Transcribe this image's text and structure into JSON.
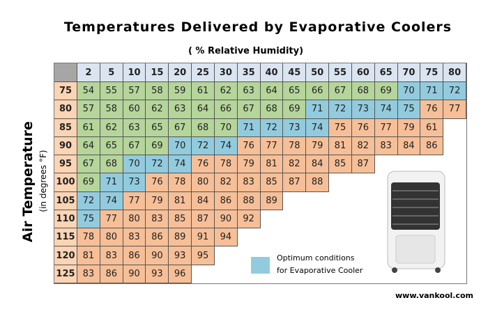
{
  "header": {
    "title": "Temperatures Delivered by Evaporative Coolers",
    "subtitle": "( % Relative Humidity)"
  },
  "axis": {
    "label": "Air Temperature",
    "unit": "(in degrees °F)"
  },
  "table": {
    "humidity": [
      2,
      5,
      10,
      15,
      20,
      25,
      30,
      35,
      40,
      45,
      50,
      55,
      60,
      65,
      70,
      75,
      80
    ],
    "zone_colors": {
      "G": "#b5d59b",
      "B": "#92cbde",
      "O": "#f6bf97"
    },
    "rows": [
      {
        "temp": 75,
        "values": [
          54,
          55,
          57,
          58,
          59,
          61,
          62,
          63,
          64,
          65,
          66,
          67,
          68,
          69,
          70,
          71,
          72
        ],
        "zones": "GGGGGGGGGGGGGGBBB"
      },
      {
        "temp": 80,
        "values": [
          57,
          58,
          60,
          62,
          63,
          64,
          66,
          67,
          68,
          69,
          71,
          72,
          73,
          74,
          75,
          76,
          77
        ],
        "zones": "GGGGGGGGGGBBBBBOO"
      },
      {
        "temp": 85,
        "values": [
          61,
          62,
          63,
          65,
          67,
          68,
          70,
          71,
          72,
          73,
          74,
          75,
          76,
          77,
          79,
          61
        ],
        "zones": "GGGGGGGBBBBOOOOO"
      },
      {
        "temp": 90,
        "values": [
          64,
          65,
          67,
          69,
          70,
          72,
          74,
          76,
          77,
          78,
          79,
          81,
          82,
          83,
          84,
          86
        ],
        "zones": "GGGGBBBOOOOOOOOO"
      },
      {
        "temp": 95,
        "values": [
          67,
          68,
          70,
          72,
          74,
          76,
          78,
          79,
          81,
          82,
          84,
          85,
          87
        ],
        "zones": "GGBBBOOOOOOOO"
      },
      {
        "temp": 100,
        "values": [
          69,
          71,
          73,
          76,
          78,
          80,
          82,
          83,
          85,
          87,
          88
        ],
        "zones": "GBBOOOOOOOO"
      },
      {
        "temp": 105,
        "values": [
          72,
          74,
          77,
          79,
          81,
          84,
          86,
          88,
          89
        ],
        "zones": "BBOOOOOOO"
      },
      {
        "temp": 110,
        "values": [
          75,
          77,
          80,
          83,
          85,
          87,
          90,
          92
        ],
        "zones": "BOOOOOOO"
      },
      {
        "temp": 115,
        "values": [
          78,
          80,
          83,
          86,
          89,
          91,
          94
        ],
        "zones": "OOOOOOO"
      },
      {
        "temp": 120,
        "values": [
          81,
          83,
          86,
          90,
          93,
          95
        ],
        "zones": "OOOOOO"
      },
      {
        "temp": 125,
        "values": [
          83,
          86,
          90,
          93,
          96
        ],
        "zones": "OOOOO"
      }
    ]
  },
  "legend": {
    "line1": "Optimum conditions",
    "line2": "for Evaporative Cooler",
    "zone": "B"
  },
  "footer": {
    "url": "www.vankool.com"
  }
}
